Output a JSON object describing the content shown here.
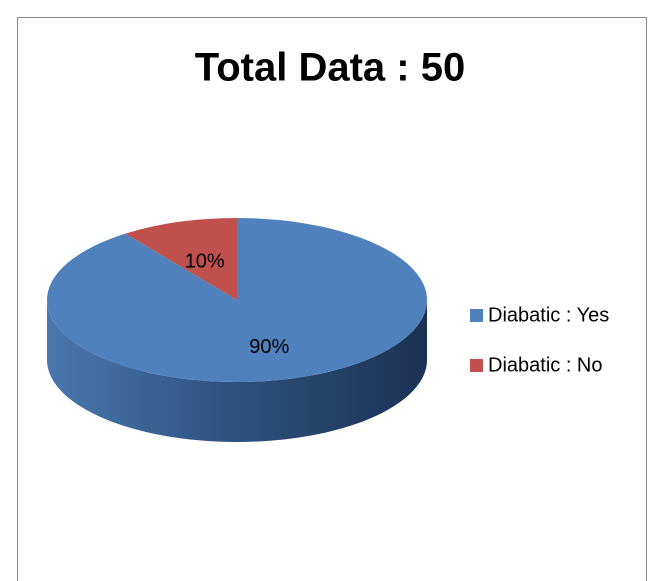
{
  "chart_data": {
    "type": "pie",
    "title": "Total Data : 50",
    "categories": [
      "Diabatic : Yes",
      "Diabatic : No"
    ],
    "values": [
      90,
      10
    ],
    "value_labels": [
      "90%",
      "10%"
    ],
    "colors": [
      "#4f81bd",
      "#c0504d"
    ],
    "legend": "right"
  }
}
